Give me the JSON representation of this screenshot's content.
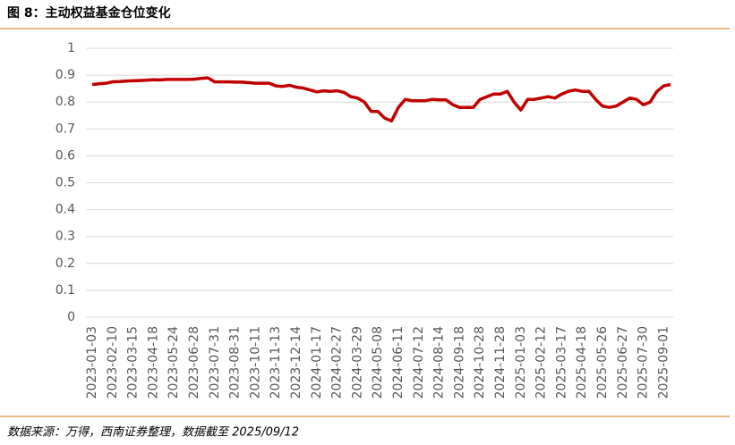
{
  "chart_data": {
    "type": "line",
    "title": "图 8：主动权益基金仓位变化",
    "source": "数据来源：万得，西南证券整理，数据截至 2025/09/12",
    "categories": [
      "2023-01-03",
      null,
      null,
      "2023-02-10",
      null,
      null,
      "2023-03-15",
      null,
      null,
      "2023-04-18",
      null,
      null,
      "2023-05-24",
      null,
      null,
      "2023-06-28",
      null,
      null,
      "2023-07-31",
      null,
      null,
      "2023-08-31",
      null,
      null,
      "2023-10-11",
      null,
      null,
      "2023-11-13",
      null,
      null,
      "2023-12-14",
      null,
      null,
      "2024-01-17",
      null,
      null,
      "2024-02-27",
      null,
      null,
      "2024-03-29",
      null,
      null,
      "2024-05-08",
      null,
      null,
      "2024-06-11",
      null,
      null,
      "2024-07-12",
      null,
      null,
      "2024-08-14",
      null,
      null,
      "2024-09-18",
      null,
      null,
      "2024-10-28",
      null,
      null,
      "2024-11-28",
      null,
      null,
      "2025-01-03",
      null,
      null,
      "2025-02-12",
      null,
      null,
      "2025-03-17",
      null,
      null,
      "2025-04-18",
      null,
      null,
      "2025-05-26",
      null,
      null,
      "2025-06-27",
      null,
      null,
      "2025-07-30",
      null,
      null,
      "2025-09-01",
      null
    ],
    "values": [
      0.865,
      0.868,
      0.87,
      0.875,
      0.876,
      0.878,
      0.879,
      0.88,
      0.881,
      0.883,
      0.882,
      0.884,
      0.884,
      0.884,
      0.884,
      0.885,
      0.888,
      0.89,
      0.875,
      0.875,
      0.875,
      0.874,
      0.874,
      0.872,
      0.87,
      0.87,
      0.87,
      0.86,
      0.858,
      0.862,
      0.855,
      0.852,
      0.845,
      0.838,
      0.842,
      0.84,
      0.842,
      0.836,
      0.82,
      0.815,
      0.8,
      0.765,
      0.765,
      0.74,
      0.73,
      0.78,
      0.81,
      0.805,
      0.805,
      0.805,
      0.81,
      0.808,
      0.808,
      0.79,
      0.78,
      0.78,
      0.78,
      0.81,
      0.82,
      0.83,
      0.83,
      0.84,
      0.8,
      0.77,
      0.81,
      0.81,
      0.815,
      0.82,
      0.815,
      0.83,
      0.84,
      0.845,
      0.84,
      0.84,
      0.81,
      0.785,
      0.78,
      0.785,
      0.8,
      0.815,
      0.81,
      0.79,
      0.8,
      0.84,
      0.86,
      0.865
    ],
    "color": "#c00000",
    "ylim": [
      0,
      1
    ],
    "yticks": [
      0,
      0.1,
      0.2,
      0.3,
      0.4,
      0.5,
      0.6,
      0.7,
      0.8,
      0.9,
      1
    ],
    "grid": true
  }
}
